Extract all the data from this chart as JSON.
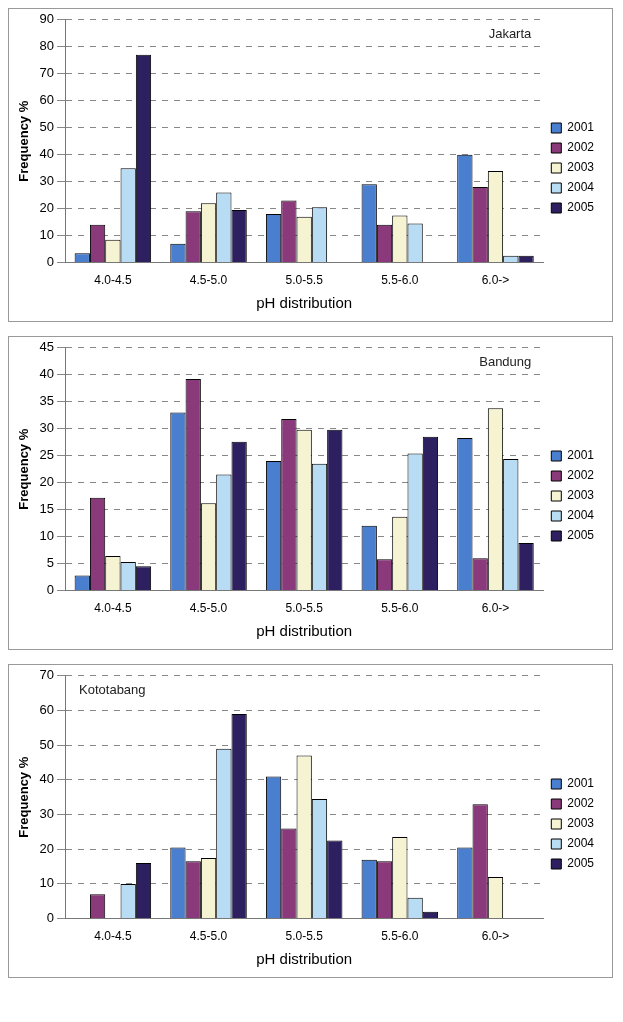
{
  "chart_data": [
    {
      "type": "bar",
      "title": "Jakarta",
      "xlabel": "pH distribution",
      "ylabel": "Frequency %",
      "categories": [
        "4.0-4.5",
        "4.5-5.0",
        "5.0-5.5",
        "5.5-6.0",
        "6.0->"
      ],
      "ylim": [
        0,
        90
      ],
      "yticks": [
        0,
        10,
        20,
        30,
        40,
        50,
        60,
        70,
        80,
        90
      ],
      "grid": "y",
      "legend": "right",
      "series": [
        {
          "name": "2001",
          "color": "#4a7fd0",
          "values": [
            3.5,
            7,
            18,
            29,
            40
          ]
        },
        {
          "name": "2002",
          "color": "#8a3a7a",
          "values": [
            14,
            19,
            23,
            14,
            28
          ]
        },
        {
          "name": "2003",
          "color": "#f6f3d2",
          "values": [
            8.5,
            22,
            17,
            17.5,
            34
          ]
        },
        {
          "name": "2004",
          "color": "#b8dcf4",
          "values": [
            35,
            26,
            20.5,
            14.5,
            2.5
          ]
        },
        {
          "name": "2005",
          "color": "#2e2060",
          "values": [
            77,
            19.5,
            0,
            0,
            2.5
          ]
        }
      ]
    },
    {
      "type": "bar",
      "title": "Bandung",
      "xlabel": "pH distribution",
      "ylabel": "Frequency %",
      "categories": [
        "4.0-4.5",
        "4.5-5.0",
        "5.0-5.5",
        "5.5-6.0",
        "6.0->"
      ],
      "ylim": [
        0,
        45
      ],
      "yticks": [
        0,
        5,
        10,
        15,
        20,
        25,
        30,
        35,
        40,
        45
      ],
      "grid": "y",
      "legend": "right",
      "series": [
        {
          "name": "2001",
          "color": "#4a7fd0",
          "values": [
            2.8,
            33,
            24,
            12,
            28.3
          ]
        },
        {
          "name": "2002",
          "color": "#8a3a7a",
          "values": [
            17.2,
            39.2,
            31.8,
            5.8,
            6
          ]
        },
        {
          "name": "2003",
          "color": "#f6f3d2",
          "values": [
            6.4,
            16.2,
            29.8,
            13.7,
            33.8
          ]
        },
        {
          "name": "2004",
          "color": "#b8dcf4",
          "values": [
            5.3,
            21.5,
            23.5,
            25.4,
            24.4
          ]
        },
        {
          "name": "2005",
          "color": "#2e2060",
          "values": [
            4.5,
            27.6,
            29.8,
            28.5,
            8.8
          ]
        }
      ]
    },
    {
      "type": "bar",
      "title": "Kototabang",
      "xlabel": "pH distribution",
      "ylabel": "Frequency %",
      "categories": [
        "4.0-4.5",
        "4.5-5.0",
        "5.0-5.5",
        "5.5-6.0",
        "6.0->"
      ],
      "ylim": [
        0,
        70
      ],
      "yticks": [
        0,
        10,
        20,
        30,
        40,
        50,
        60,
        70
      ],
      "grid": "y",
      "legend": "right",
      "series": [
        {
          "name": "2001",
          "color": "#4a7fd0",
          "values": [
            0,
            20.5,
            41,
            17,
            20.5
          ]
        },
        {
          "name": "2002",
          "color": "#8a3a7a",
          "values": [
            7,
            16.5,
            26,
            16.5,
            33
          ]
        },
        {
          "name": "2003",
          "color": "#f6f3d2",
          "values": [
            0,
            17.5,
            47,
            23.5,
            12
          ]
        },
        {
          "name": "2004",
          "color": "#b8dcf4",
          "values": [
            10,
            49,
            34.5,
            6,
            0
          ]
        },
        {
          "name": "2005",
          "color": "#2e2060",
          "values": [
            16,
            59,
            22.5,
            2,
            0
          ]
        }
      ]
    }
  ]
}
